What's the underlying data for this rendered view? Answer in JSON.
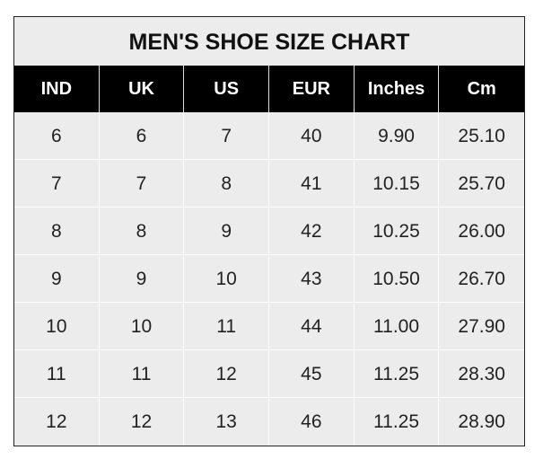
{
  "title": "MEN'S SHOE SIZE CHART",
  "headers": [
    "IND",
    "UK",
    "US",
    "EUR",
    "Inches",
    "Cm"
  ],
  "rows": [
    [
      "6",
      "6",
      "7",
      "40",
      "9.90",
      "25.10"
    ],
    [
      "7",
      "7",
      "8",
      "41",
      "10.15",
      "25.70"
    ],
    [
      "8",
      "8",
      "9",
      "42",
      "10.25",
      "26.00"
    ],
    [
      "9",
      "9",
      "10",
      "43",
      "10.50",
      "26.70"
    ],
    [
      "10",
      "10",
      "11",
      "44",
      "11.00",
      "27.90"
    ],
    [
      "11",
      "11",
      "12",
      "45",
      "11.25",
      "28.30"
    ],
    [
      "12",
      "12",
      "13",
      "46",
      "11.25",
      "28.90"
    ]
  ],
  "colors": {
    "header_bg": "#000000",
    "cell_bg": "#ececec",
    "header_text": "#ffffff"
  }
}
